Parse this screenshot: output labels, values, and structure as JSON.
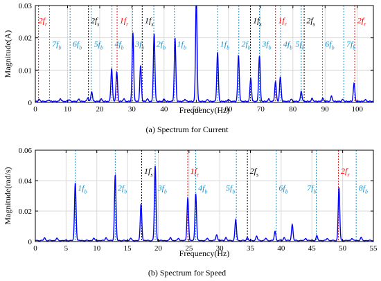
{
  "chart_data": [
    {
      "type": "line",
      "caption": "(a) Spectrum for Current",
      "xlabel": "Frequency(Hz)",
      "ylabel": "Magnitude(A)",
      "xlim": [
        0,
        105
      ],
      "ylim": [
        0,
        0.03
      ],
      "xticks": [
        0,
        10,
        20,
        30,
        40,
        50,
        60,
        70,
        80,
        90,
        100
      ],
      "yticks": [
        0,
        0.01,
        0.02,
        0.03
      ],
      "ytick_labels": [
        "0",
        "0.01",
        "0.02",
        "0.03"
      ],
      "grid": true,
      "line_color": "#0000ff",
      "baseline": 0.00035,
      "peaks": [
        {
          "x": 1.2,
          "y": 0.0006
        },
        {
          "x": 4.2,
          "y": 0.0004
        },
        {
          "x": 7.8,
          "y": 0.0008
        },
        {
          "x": 10.5,
          "y": 0.0005
        },
        {
          "x": 13.5,
          "y": 0.0007
        },
        {
          "x": 16.3,
          "y": 0.0011
        },
        {
          "x": 17.5,
          "y": 0.003
        },
        {
          "x": 20.5,
          "y": 0.0007
        },
        {
          "x": 23.7,
          "y": 0.0101
        },
        {
          "x": 25.3,
          "y": 0.0091
        },
        {
          "x": 27.5,
          "y": 0.0008
        },
        {
          "x": 30.3,
          "y": 0.0212
        },
        {
          "x": 32.7,
          "y": 0.0111
        },
        {
          "x": 34.8,
          "y": 0.0008
        },
        {
          "x": 36.9,
          "y": 0.021
        },
        {
          "x": 40.0,
          "y": 0.0007
        },
        {
          "x": 43.4,
          "y": 0.0196
        },
        {
          "x": 46.5,
          "y": 0.0006
        },
        {
          "x": 50.0,
          "y": 0.032
        },
        {
          "x": 53.5,
          "y": 0.0006
        },
        {
          "x": 56.6,
          "y": 0.0151
        },
        {
          "x": 60.0,
          "y": 0.0006
        },
        {
          "x": 63.1,
          "y": 0.0141
        },
        {
          "x": 66.9,
          "y": 0.0071
        },
        {
          "x": 69.6,
          "y": 0.0141
        },
        {
          "x": 72.5,
          "y": 0.0007
        },
        {
          "x": 74.6,
          "y": 0.0061
        },
        {
          "x": 76.1,
          "y": 0.0076
        },
        {
          "x": 79.5,
          "y": 0.0007
        },
        {
          "x": 82.6,
          "y": 0.0031
        },
        {
          "x": 86.0,
          "y": 0.0009
        },
        {
          "x": 89.3,
          "y": 0.0009
        },
        {
          "x": 92.0,
          "y": 0.0016
        },
        {
          "x": 95.5,
          "y": 0.0006
        },
        {
          "x": 99.0,
          "y": 0.0056
        },
        {
          "x": 102.5,
          "y": 0.0005
        }
      ],
      "markers": [
        {
          "x": 1,
          "label": "2",
          "sub": "r",
          "color": "#ff0000",
          "textx": 1,
          "texty": 0.0245
        },
        {
          "x": 4.4,
          "label": "7",
          "sub": "b",
          "color": "#1e90c8",
          "textx": 5.2,
          "texty": 0.0173
        },
        {
          "x": 10.8,
          "label": "6",
          "sub": "b",
          "color": "#1e90c8",
          "textx": 11.6,
          "texty": 0.0173
        },
        {
          "x": 16.5,
          "label": "2",
          "sub": "s",
          "color": "#000000",
          "textx": 17.2,
          "texty": 0.0245
        },
        {
          "x": 17.4,
          "label": "5",
          "sub": "b",
          "color": "#1e90c8",
          "textx": 18.2,
          "texty": 0.0173
        },
        {
          "x": 23.8,
          "label": "4",
          "sub": "b",
          "color": "#1e90c8",
          "textx": 24.6,
          "texty": 0.0173
        },
        {
          "x": 25.4,
          "label": "1",
          "sub": "r",
          "color": "#ff0000",
          "textx": 26.2,
          "texty": 0.0245
        },
        {
          "x": 30.2,
          "label": "3",
          "sub": "b",
          "color": "#1e90c8",
          "textx": 31.0,
          "texty": 0.0173
        },
        {
          "x": 33.2,
          "label": "1",
          "sub": "s",
          "color": "#000000",
          "textx": 34.0,
          "texty": 0.0245
        },
        {
          "x": 36.8,
          "label": "2",
          "sub": "b",
          "color": "#1e90c8",
          "textx": 37.6,
          "texty": 0.0173
        },
        {
          "x": 43.2,
          "label": "1",
          "sub": "b",
          "color": "#1e90c8",
          "textx": 44.0,
          "texty": 0.0173
        },
        {
          "x": 56.6,
          "label": "1",
          "sub": "b",
          "color": "#1e90c8",
          "textx": 57.4,
          "texty": 0.0173
        },
        {
          "x": 63.2,
          "label": "2",
          "sub": "b",
          "color": "#1e90c8",
          "textx": 64.0,
          "texty": 0.0173
        },
        {
          "x": 66.8,
          "label": "1",
          "sub": "s",
          "color": "#000000",
          "textx": 67.6,
          "texty": 0.0245
        },
        {
          "x": 69.6,
          "label": "3",
          "sub": "b",
          "color": "#1e90c8",
          "textx": 70.4,
          "texty": 0.0173
        },
        {
          "x": 74.6,
          "label": "1",
          "sub": "r",
          "color": "#ff0000",
          "textx": 75.4,
          "texty": 0.0245
        },
        {
          "x": 76.2,
          "label": "4",
          "sub": "b",
          "color": "#1e90c8",
          "textx": 77.0,
          "texty": 0.0173
        },
        {
          "x": 82.6,
          "label": "5",
          "sub": "b",
          "color": "#1e90c8",
          "textx": 80.8,
          "texty": 0.0173
        },
        {
          "x": 83.5,
          "label": "2",
          "sub": "s",
          "color": "#000000",
          "textx": 84.2,
          "texty": 0.0245
        },
        {
          "x": 89.2,
          "label": "6",
          "sub": "b",
          "color": "#1e90c8",
          "textx": 90.0,
          "texty": 0.0173
        },
        {
          "x": 95.8,
          "label": "7",
          "sub": "b",
          "color": "#1e90c8",
          "textx": 96.6,
          "texty": 0.0173
        },
        {
          "x": 99.2,
          "label": "2",
          "sub": "r",
          "color": "#ff0000",
          "textx": 100.0,
          "texty": 0.0245
        }
      ]
    },
    {
      "type": "line",
      "caption": "(b) Spectrum for Speed",
      "xlabel": "Frequency(Hz)",
      "ylabel": "Magnitude(rad/s)",
      "xlim": [
        0,
        55
      ],
      "ylim": [
        0,
        0.06
      ],
      "xticks": [
        0,
        5,
        10,
        15,
        20,
        25,
        30,
        35,
        40,
        45,
        50,
        55
      ],
      "yticks": [
        0,
        0.02,
        0.04,
        0.06
      ],
      "ytick_labels": [
        "0",
        "0.02",
        "0.04",
        "0.06"
      ],
      "grid": true,
      "line_color": "#0000ff",
      "baseline": 0.0007,
      "peaks": [
        {
          "x": 1.5,
          "y": 0.0018
        },
        {
          "x": 3.5,
          "y": 0.0015
        },
        {
          "x": 6.5,
          "y": 0.038
        },
        {
          "x": 9.5,
          "y": 0.0015
        },
        {
          "x": 11.5,
          "y": 0.002
        },
        {
          "x": 13.0,
          "y": 0.043
        },
        {
          "x": 15.5,
          "y": 0.0015
        },
        {
          "x": 17.2,
          "y": 0.024
        },
        {
          "x": 19.5,
          "y": 0.049
        },
        {
          "x": 22.0,
          "y": 0.002
        },
        {
          "x": 23.3,
          "y": 0.0015
        },
        {
          "x": 24.8,
          "y": 0.028
        },
        {
          "x": 26.1,
          "y": 0.031
        },
        {
          "x": 28.0,
          "y": 0.0015
        },
        {
          "x": 29.5,
          "y": 0.004
        },
        {
          "x": 31.0,
          "y": 0.002
        },
        {
          "x": 32.6,
          "y": 0.0135
        },
        {
          "x": 34.5,
          "y": 0.002
        },
        {
          "x": 36.0,
          "y": 0.003
        },
        {
          "x": 37.5,
          "y": 0.0015
        },
        {
          "x": 39.0,
          "y": 0.006
        },
        {
          "x": 40.5,
          "y": 0.002
        },
        {
          "x": 41.8,
          "y": 0.0105
        },
        {
          "x": 44.0,
          "y": 0.0015
        },
        {
          "x": 45.8,
          "y": 0.003
        },
        {
          "x": 47.5,
          "y": 0.0015
        },
        {
          "x": 49.4,
          "y": 0.035
        },
        {
          "x": 51.5,
          "y": 0.0015
        },
        {
          "x": 53.0,
          "y": 0.002
        }
      ],
      "markers": [
        {
          "x": 6.5,
          "label": "1",
          "sub": "b",
          "color": "#1e90c8",
          "textx": 6.9,
          "texty": 0.0335
        },
        {
          "x": 13.0,
          "label": "2",
          "sub": "b",
          "color": "#1e90c8",
          "textx": 13.4,
          "texty": 0.0335
        },
        {
          "x": 17.3,
          "label": "1",
          "sub": "s",
          "color": "#000000",
          "textx": 17.7,
          "texty": 0.0445
        },
        {
          "x": 19.5,
          "label": "3",
          "sub": "b",
          "color": "#1e90c8",
          "textx": 19.9,
          "texty": 0.0335
        },
        {
          "x": 24.8,
          "label": "1",
          "sub": "r",
          "color": "#ff0000",
          "textx": 25.2,
          "texty": 0.0445
        },
        {
          "x": 26.1,
          "label": "4",
          "sub": "b",
          "color": "#1e90c8",
          "textx": 26.5,
          "texty": 0.0335
        },
        {
          "x": 32.7,
          "label": "5",
          "sub": "b",
          "color": "#1e90c8",
          "textx": 31.0,
          "texty": 0.0335
        },
        {
          "x": 34.5,
          "label": "2",
          "sub": "s",
          "color": "#000000",
          "textx": 34.9,
          "texty": 0.0445
        },
        {
          "x": 39.2,
          "label": "6",
          "sub": "b",
          "color": "#1e90c8",
          "textx": 39.6,
          "texty": 0.0335
        },
        {
          "x": 45.7,
          "label": "7",
          "sub": "b",
          "color": "#1e90c8",
          "textx": 44.2,
          "texty": 0.0335
        },
        {
          "x": 49.3,
          "label": "2",
          "sub": "r",
          "color": "#ff0000",
          "textx": 49.7,
          "texty": 0.0445
        },
        {
          "x": 52.2,
          "label": "8",
          "sub": "b",
          "color": "#1e90c8",
          "textx": 52.6,
          "texty": 0.0335
        }
      ]
    }
  ],
  "symbol": "f"
}
